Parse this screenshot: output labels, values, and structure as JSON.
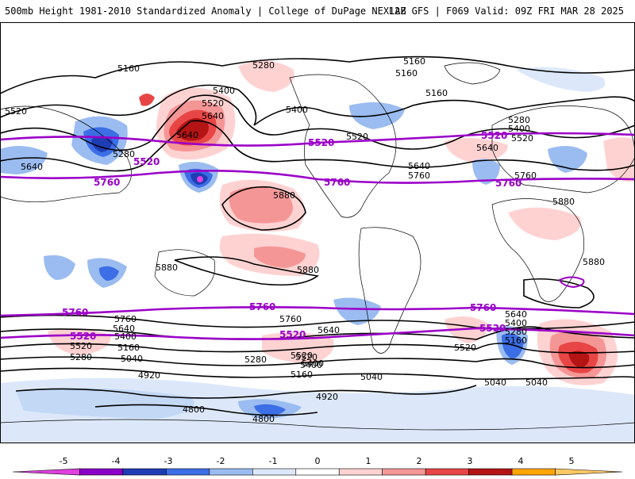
{
  "header": {
    "left_title": "500mb Height 1981-2010 Standardized Anomaly | College of DuPage NEXLAB",
    "right_title": "12Z GFS | F069 Valid: 09Z FRI MAR 28 2025"
  },
  "map": {
    "contour_labels_black": [
      "5160",
      "5280",
      "5160",
      "5160",
      "5160",
      "5520",
      "5400",
      "5520",
      "5640",
      "5400",
      "5520",
      "5640",
      "5280",
      "5640",
      "5880",
      "5880",
      "5880",
      "5880",
      "5880",
      "5640",
      "5760",
      "5280",
      "5400",
      "5520",
      "5640",
      "5760",
      "5760",
      "5640",
      "5520",
      "5400",
      "5160",
      "5040",
      "5280",
      "5520",
      "5640",
      "5400",
      "5160",
      "5040",
      "5040",
      "5760",
      "5640",
      "5520",
      "5400",
      "5280",
      "5160",
      "5040",
      "4920",
      "4920",
      "4800",
      "4800",
      "5280",
      "5400",
      "5520"
    ],
    "contour_labels_purple": [
      "5520",
      "5520",
      "5520",
      "5520",
      "5760",
      "5760",
      "5760",
      "5760",
      "5760",
      "5760",
      "5520",
      "5520",
      "5520"
    ]
  },
  "colorbar": {
    "tick_labels": [
      "-5",
      "-4",
      "-3",
      "-2",
      "-1",
      "0",
      "1",
      "2",
      "3",
      "4",
      "5"
    ],
    "colors": [
      "#e040e0",
      "#8a00c8",
      "#1e3cb4",
      "#3c6ee6",
      "#9bbcf0",
      "#dce8fa",
      "#ffffff",
      "#ffd2d2",
      "#f59696",
      "#e84646",
      "#b41414",
      "#ffa500",
      "#ffc864"
    ]
  }
}
